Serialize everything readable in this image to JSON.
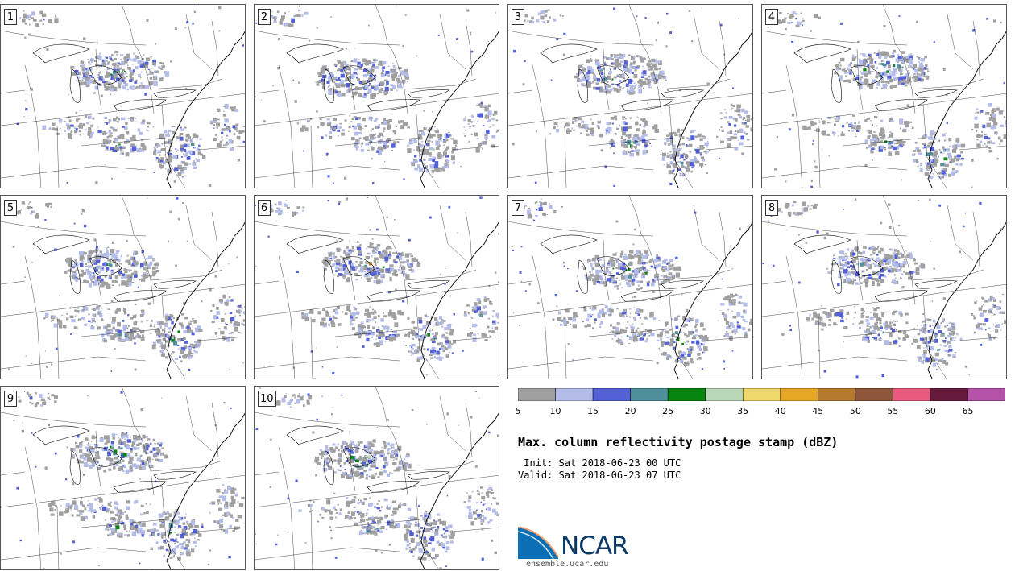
{
  "figure": {
    "title": "Max. column reflectivity postage stamp (dBZ)",
    "init": " Init: Sat 2018-06-23 00 UTC",
    "valid": "Valid: Sat 2018-06-23 07 UTC"
  },
  "panels": [
    {
      "label": "1"
    },
    {
      "label": "2"
    },
    {
      "label": "3"
    },
    {
      "label": "4"
    },
    {
      "label": "5"
    },
    {
      "label": "6"
    },
    {
      "label": "7"
    },
    {
      "label": "8"
    },
    {
      "label": "9"
    },
    {
      "label": "10"
    }
  ],
  "colorbar": {
    "ticks": [
      "5",
      "10",
      "15",
      "20",
      "25",
      "30",
      "35",
      "40",
      "45",
      "50",
      "55",
      "60",
      "65"
    ],
    "colors": [
      "#a0a0a0",
      "#b4bce8",
      "#5460d6",
      "#4f8f9b",
      "#07860f",
      "#b8d8b8",
      "#efd86a",
      "#e6a823",
      "#b57a2e",
      "#8d563a",
      "#ea5a7e",
      "#661a3c",
      "#b453a8"
    ]
  },
  "logo": {
    "name": "NCAR",
    "site": "ensemble.ucar.edu"
  },
  "colors": {
    "map_lines": "#000000",
    "background": "#ffffff"
  }
}
